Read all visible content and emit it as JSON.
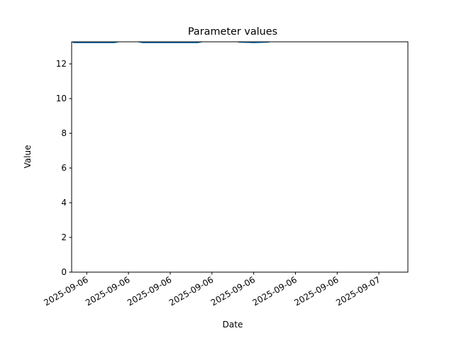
{
  "chart_data": {
    "type": "line",
    "title": "Parameter values",
    "xlabel": "Date",
    "ylabel": "Value",
    "ylim": [
      0,
      13.27
    ],
    "xlim": [
      "2025-09-06T01:55",
      "2025-09-07T02:05"
    ],
    "grid": false,
    "line_color": "#1f77b4",
    "yticks": [
      0,
      2,
      4,
      6,
      8,
      10,
      12
    ],
    "xticks": [
      {
        "t": "2025-09-06T03:00",
        "label": "2025-09-06"
      },
      {
        "t": "2025-09-06T06:00",
        "label": "2025-09-06"
      },
      {
        "t": "2025-09-06T09:00",
        "label": "2025-09-06"
      },
      {
        "t": "2025-09-06T12:00",
        "label": "2025-09-06"
      },
      {
        "t": "2025-09-06T15:00",
        "label": "2025-09-06"
      },
      {
        "t": "2025-09-06T18:00",
        "label": "2025-09-06"
      },
      {
        "t": "2025-09-06T21:00",
        "label": "2025-09-06"
      },
      {
        "t": "2025-09-07T00:00",
        "label": "2025-09-07"
      }
    ],
    "series": [
      {
        "x": [
          "2025-09-06T02:00",
          "2025-09-06T03:00",
          "2025-09-06T04:00",
          "2025-09-06T05:00",
          "2025-09-06T06:00",
          "2025-09-06T07:00",
          "2025-09-06T08:00",
          "2025-09-06T09:00",
          "2025-09-06T10:00",
          "2025-09-06T11:00",
          "2025-09-06T12:00",
          "2025-09-06T13:00",
          "2025-09-06T14:00",
          "2025-09-06T15:00",
          "2025-09-06T16:00",
          "2025-09-06T17:00",
          "2025-09-06T18:00",
          "2025-09-06T19:00",
          "2025-09-06T20:00",
          "2025-09-06T21:00",
          "2025-09-06T22:00",
          "2025-09-06T23:00",
          "2025-09-07T00:00",
          "2025-09-07T01:00",
          "2025-09-07T02:00"
        ],
        "values": [
          13.22,
          13.22,
          13.22,
          13.22,
          13.4,
          13.22,
          13.22,
          13.22,
          13.22,
          13.22,
          13.4,
          13.4,
          13.25,
          13.22,
          13.25,
          13.4,
          13.45,
          13.45,
          13.45,
          13.45,
          13.45,
          13.45,
          13.45,
          13.45,
          13.45
        ]
      }
    ]
  }
}
